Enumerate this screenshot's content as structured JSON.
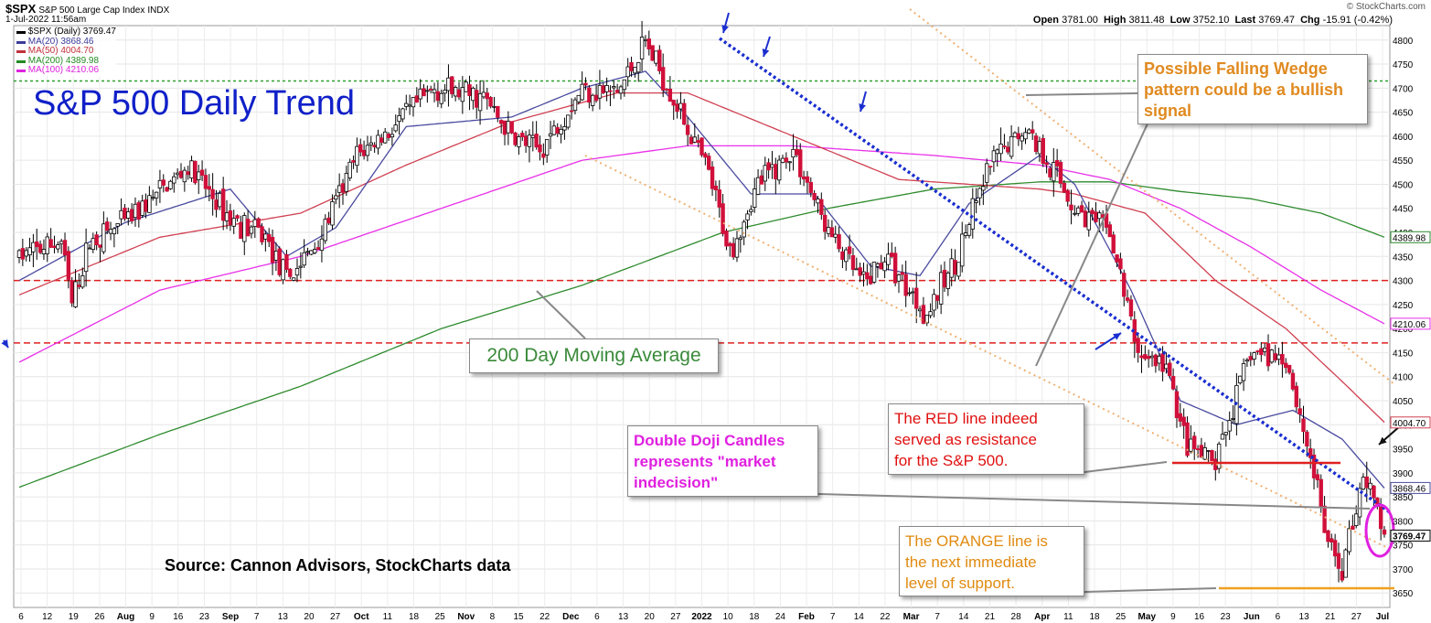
{
  "header": {
    "symbol": "$SPX",
    "name": "S&P 500 Large Cap Index",
    "exchange": "INDX",
    "timestamp": "1-Jul-2022 11:56am",
    "brand": "© StockCharts.com",
    "open_label": "Open",
    "open": "3781.00",
    "high_label": "High",
    "high": "3811.48",
    "low_label": "Low",
    "low": "3752.10",
    "last_label": "Last",
    "last": "3769.47",
    "chg_label": "Chg",
    "chg": "-15.91 (-0.42%)"
  },
  "legend": [
    {
      "label": "$SPX (Daily) 3769.47",
      "color": "#000000"
    },
    {
      "label": "MA(20) 3868.46",
      "color": "#3b3b9a"
    },
    {
      "label": "MA(50) 4004.70",
      "color": "#c0313a"
    },
    {
      "label": "MA(200) 4389.98",
      "color": "#238a23"
    },
    {
      "label": "MA(100) 4210.06",
      "color": "#e020e0"
    }
  ],
  "colors": {
    "up": "#ffffff",
    "down": "#d0103a",
    "ma20": "#4a4aa0",
    "ma50": "#d04050",
    "ma100": "#e830e8",
    "ma200": "#2e8b2e",
    "resistance": "#e02020",
    "support": "#f0a020",
    "wedge": "#f0b070",
    "trend": "#1a2ed0"
  },
  "annotations": {
    "title": "S&P 500 Daily Trend",
    "source": "Source: Cannon Advisors, StockCharts data",
    "ma200": "200 Day Moving Average",
    "wedge": [
      "Possible Falling Wedge",
      "pattern could be a bullish",
      "signal"
    ],
    "red": [
      "The RED line indeed",
      "served as resistance",
      "for the S&P 500."
    ],
    "doji": [
      "Double Doji Candles",
      "represents \"market",
      "indecision\""
    ],
    "orange": [
      "The ORANGE line is",
      "the next immediate",
      "level of support."
    ]
  },
  "chart_data": {
    "type": "candlestick",
    "ylim": [
      3620,
      4830
    ],
    "y_ticks": [
      3650,
      3700,
      3750,
      3800,
      3850,
      3900,
      3950,
      4000,
      4050,
      4100,
      4150,
      4200,
      4250,
      4300,
      4350,
      4400,
      4450,
      4500,
      4550,
      4600,
      4650,
      4700,
      4750,
      4800
    ],
    "x_ticks": [
      "6",
      "12",
      "19",
      "26",
      "Aug",
      "9",
      "16",
      "23",
      "Sep",
      "7",
      "13",
      "20",
      "27",
      "Oct",
      "11",
      "18",
      "25",
      "Nov",
      "8",
      "15",
      "22",
      "Dec",
      "6",
      "13",
      "20",
      "27",
      "2022",
      "10",
      "18",
      "24",
      "Feb",
      "7",
      "14",
      "22",
      "Mar",
      "7",
      "14",
      "21",
      "28",
      "Apr",
      "11",
      "18",
      "25",
      "May",
      "9",
      "16",
      "23",
      "Jun",
      "6",
      "13",
      "21",
      "27",
      "Jul"
    ],
    "x_ticks_bold": [
      "Aug",
      "Sep",
      "Oct",
      "Nov",
      "Dec",
      "2022",
      "Feb",
      "Mar",
      "Apr",
      "May",
      "Jun",
      "Jul"
    ],
    "price_anchors": [
      [
        0,
        4350
      ],
      [
        12,
        4380
      ],
      [
        15,
        4250
      ],
      [
        20,
        4380
      ],
      [
        30,
        4420
      ],
      [
        48,
        4535
      ],
      [
        60,
        4430
      ],
      [
        70,
        4390
      ],
      [
        76,
        4300
      ],
      [
        85,
        4380
      ],
      [
        96,
        4560
      ],
      [
        105,
        4610
      ],
      [
        118,
        4700
      ],
      [
        132,
        4680
      ],
      [
        140,
        4600
      ],
      [
        148,
        4570
      ],
      [
        160,
        4700
      ],
      [
        170,
        4690
      ],
      [
        178,
        4795
      ],
      [
        186,
        4680
      ],
      [
        196,
        4520
      ],
      [
        202,
        4360
      ],
      [
        210,
        4500
      ],
      [
        220,
        4570
      ],
      [
        230,
        4400
      ],
      [
        240,
        4290
      ],
      [
        246,
        4350
      ],
      [
        258,
        4230
      ],
      [
        266,
        4340
      ],
      [
        276,
        4540
      ],
      [
        286,
        4620
      ],
      [
        294,
        4530
      ],
      [
        300,
        4450
      ],
      [
        310,
        4400
      ],
      [
        318,
        4150
      ],
      [
        326,
        4120
      ],
      [
        332,
        3950
      ],
      [
        340,
        3920
      ],
      [
        350,
        4150
      ],
      [
        360,
        4140
      ],
      [
        368,
        3900
      ],
      [
        372,
        3750
      ],
      [
        376,
        3700
      ],
      [
        382,
        3900
      ],
      [
        386,
        3818
      ],
      [
        388,
        3770
      ]
    ],
    "ma20_anchors": [
      [
        0,
        4300
      ],
      [
        30,
        4420
      ],
      [
        60,
        4490
      ],
      [
        76,
        4350
      ],
      [
        90,
        4410
      ],
      [
        110,
        4620
      ],
      [
        140,
        4640
      ],
      [
        160,
        4700
      ],
      [
        178,
        4735
      ],
      [
        190,
        4640
      ],
      [
        208,
        4480
      ],
      [
        226,
        4480
      ],
      [
        242,
        4330
      ],
      [
        256,
        4310
      ],
      [
        270,
        4460
      ],
      [
        290,
        4560
      ],
      [
        300,
        4500
      ],
      [
        316,
        4280
      ],
      [
        330,
        4050
      ],
      [
        346,
        4000
      ],
      [
        362,
        4030
      ],
      [
        376,
        3970
      ],
      [
        388,
        3868
      ]
    ],
    "ma50_anchors": [
      [
        0,
        4270
      ],
      [
        40,
        4390
      ],
      [
        80,
        4440
      ],
      [
        110,
        4540
      ],
      [
        140,
        4630
      ],
      [
        170,
        4690
      ],
      [
        190,
        4690
      ],
      [
        220,
        4600
      ],
      [
        250,
        4510
      ],
      [
        270,
        4500
      ],
      [
        290,
        4490
      ],
      [
        300,
        4480
      ],
      [
        320,
        4440
      ],
      [
        340,
        4300
      ],
      [
        360,
        4200
      ],
      [
        376,
        4090
      ],
      [
        388,
        4005
      ]
    ],
    "ma100_anchors": [
      [
        0,
        4130
      ],
      [
        40,
        4280
      ],
      [
        80,
        4350
      ],
      [
        120,
        4450
      ],
      [
        160,
        4550
      ],
      [
        190,
        4580
      ],
      [
        220,
        4580
      ],
      [
        260,
        4560
      ],
      [
        290,
        4540
      ],
      [
        310,
        4510
      ],
      [
        330,
        4450
      ],
      [
        350,
        4370
      ],
      [
        370,
        4280
      ],
      [
        388,
        4210
      ]
    ],
    "ma200_anchors": [
      [
        0,
        3870
      ],
      [
        40,
        3980
      ],
      [
        80,
        4080
      ],
      [
        120,
        4200
      ],
      [
        160,
        4290
      ],
      [
        200,
        4400
      ],
      [
        230,
        4450
      ],
      [
        260,
        4490
      ],
      [
        290,
        4505
      ],
      [
        310,
        4505
      ],
      [
        330,
        4485
      ],
      [
        350,
        4470
      ],
      [
        370,
        4440
      ],
      [
        388,
        4390
      ]
    ],
    "right_labels": [
      {
        "value": 4389.98,
        "text": "4389.98",
        "color": "#2e8b2e"
      },
      {
        "value": 4210.06,
        "text": "4210.06",
        "color": "#e830e8"
      },
      {
        "value": 4004.7,
        "text": "4004.70",
        "color": "#d04050"
      },
      {
        "value": 3868.46,
        "text": "3868.46",
        "color": "#4a4aa0"
      },
      {
        "value": 3769.47,
        "text": "3769.47",
        "color": "#000000"
      }
    ],
    "horizontal_levels": [
      {
        "value": 4715,
        "color": "#2ea02e",
        "style": "dash-fine"
      },
      {
        "value": 4300,
        "color": "#e02020",
        "style": "dash"
      },
      {
        "value": 4170,
        "color": "#e02020",
        "style": "dash"
      }
    ]
  }
}
